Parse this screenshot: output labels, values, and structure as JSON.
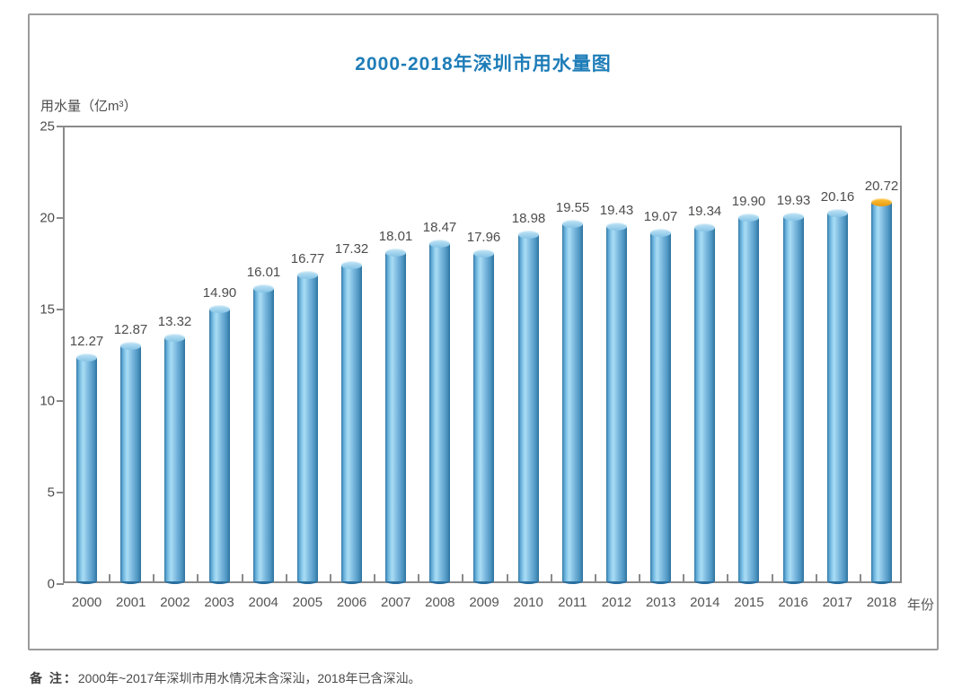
{
  "card": {
    "title": "2000-2018年深圳市用水量图",
    "y_axis_title": "用水量（亿m³）",
    "x_axis_title": "年份"
  },
  "note": {
    "label": "备 注：",
    "text": "2000年~2017年深圳市用水情况未含深汕，2018年已含深汕。"
  },
  "chart_data": {
    "type": "bar",
    "title": "2000-2018年深圳市用水量图",
    "xlabel": "年份",
    "ylabel": "用水量（亿m³）",
    "ylim": [
      0,
      25
    ],
    "yticks": [
      0,
      5,
      10,
      15,
      20,
      25
    ],
    "grid": false,
    "legend": false,
    "categories": [
      "2000",
      "2001",
      "2002",
      "2003",
      "2004",
      "2005",
      "2006",
      "2007",
      "2008",
      "2009",
      "2010",
      "2011",
      "2012",
      "2013",
      "2014",
      "2015",
      "2016",
      "2017",
      "2018"
    ],
    "values": [
      12.27,
      12.87,
      13.32,
      14.9,
      16.01,
      16.77,
      17.32,
      18.01,
      18.47,
      17.96,
      18.98,
      19.55,
      19.43,
      19.07,
      19.34,
      19.9,
      19.93,
      20.16,
      20.72
    ],
    "bar_style": "cylinder-3d",
    "bar_color": "#4e95c2",
    "highlight": {
      "category": "2018",
      "cap_color": "#f2a818",
      "meaning": "2018年已含深汕"
    }
  },
  "colors": {
    "title_blue": "#1e7db8",
    "axis_gray": "#8a8a8a",
    "text_gray": "#4d4d4d",
    "bar_highlight_cap": "#f2a818",
    "card_border": "#9b9b9b"
  }
}
